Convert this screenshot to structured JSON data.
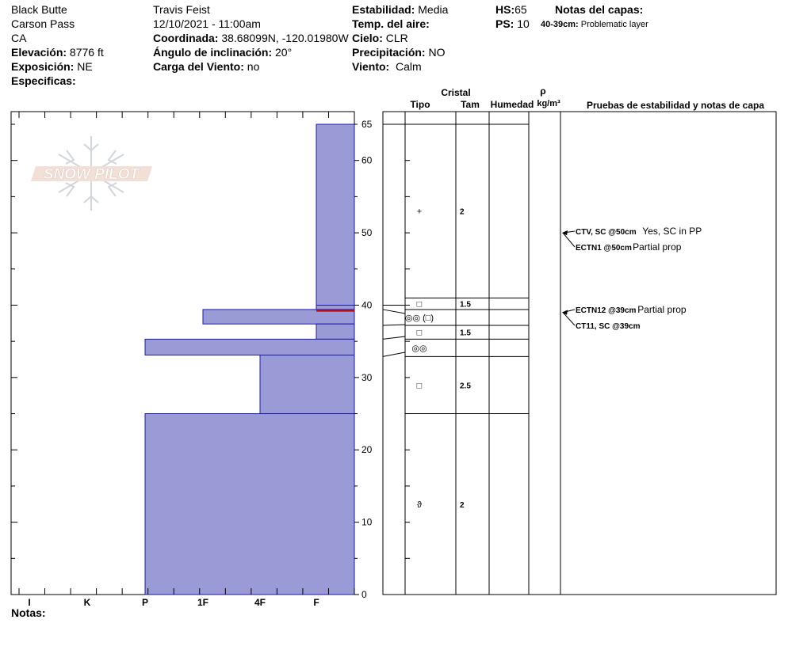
{
  "header": {
    "location": "Black Butte",
    "area": "Carson Pass",
    "state": "CA",
    "elevation_label": "Elevación:",
    "elevation": "8776 ft",
    "aspect_label": "Exposición:",
    "aspect": "NE",
    "specifics_label": "Especificas:",
    "observer": "Travis Feist",
    "datetime": "12/10/2021 - 11:00am",
    "coord_label": "Coordinada:",
    "coord": "38.68099N, -120.01980W",
    "slope_label": "Ángulo de inclinación:",
    "slope": "20°",
    "wind_load_label": "Carga del Viento:",
    "wind_load": "no",
    "stability_label": "Estabilidad:",
    "stability": "Media",
    "air_temp_label": "Temp. del aire:",
    "air_temp": "",
    "sky_label": "Cielo:",
    "sky": "CLR",
    "precip_label": "Precipitación:",
    "precip": "NO",
    "wind_label": "Viento:",
    "wind": "Calm",
    "hs_label": "HS:",
    "hs": "65",
    "ps_label": "PS:",
    "ps": "10",
    "notes_title": "Notas del capas:",
    "layer_note_range": "40-39cm:",
    "layer_note_text": "Problematic layer"
  },
  "logo_text": "SNOW PILOT",
  "notes_label": "Notas:",
  "table_headers": {
    "crystal": "Cristal",
    "type": "Tipo",
    "size": "Tam",
    "humidity": "Humedad",
    "rho": "ρ",
    "density_unit": "kg/m³",
    "stability_notes": "Pruebas de estabilidad y notas de capa"
  },
  "colors": {
    "layer_fill": "#9a9ad6",
    "layer_edge": "#1a1aa8",
    "marker_line": "#cc0000"
  },
  "chart_data": {
    "type": "bar",
    "orientation": "horizontal",
    "title": "",
    "xlabel": "",
    "ylabel": "",
    "hardness_scale": [
      "I",
      "K",
      "P",
      "1F",
      "4F",
      "F"
    ],
    "ylim": [
      0,
      65
    ],
    "yticks": [
      0,
      10,
      20,
      30,
      40,
      50,
      60,
      65
    ],
    "layers": [
      {
        "top": 65,
        "bottom": 39.4,
        "hardness": "F"
      },
      {
        "top": 39.4,
        "bottom": 37.4,
        "hardness": "1F"
      },
      {
        "top": 37.4,
        "bottom": 35.3,
        "hardness": "F"
      },
      {
        "top": 35.3,
        "bottom": 33.1,
        "hardness": "P"
      },
      {
        "top": 33.1,
        "bottom": 25.0,
        "hardness": "4F"
      },
      {
        "top": 25.0,
        "bottom": 0,
        "hardness": "P"
      }
    ],
    "problematic_layer": {
      "top": 40,
      "bottom": 39
    },
    "layer_rows": [
      {
        "top": 65,
        "bottom": 41,
        "type": "+",
        "size": "2"
      },
      {
        "top": 41,
        "bottom": 39.4,
        "type": "□",
        "size": "1.5"
      },
      {
        "top": 39.4,
        "bottom": 37.2,
        "type": "◎◎ (□)",
        "size": ""
      },
      {
        "top": 37.2,
        "bottom": 35.3,
        "type": "□",
        "size": "1.5"
      },
      {
        "top": 35.3,
        "bottom": 32.9,
        "type": "◎◎",
        "size": ""
      },
      {
        "top": 32.9,
        "bottom": 25.0,
        "type": "□",
        "size": "2.5"
      },
      {
        "top": 25.0,
        "bottom": 0,
        "type": "ϑ",
        "size": "2"
      }
    ],
    "tests": [
      {
        "depth": 50,
        "code": "CTV, SC @50cm",
        "comment": "Yes, SC in PP"
      },
      {
        "depth": 50,
        "code": "ECTN1 @50cm",
        "comment": "Partial prop"
      },
      {
        "depth": 39,
        "code": "ECTN12 @39cm",
        "comment": "Partial prop"
      },
      {
        "depth": 39,
        "code": "CT11, SC @39cm",
        "comment": ""
      }
    ]
  }
}
